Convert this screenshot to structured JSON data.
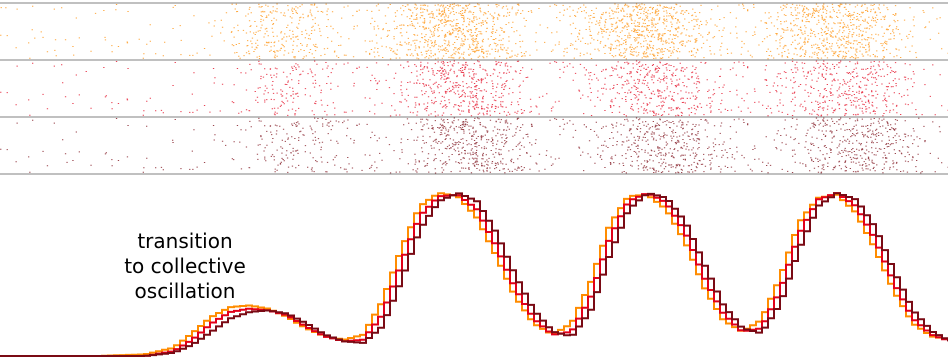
{
  "chart_data": {
    "type": "line",
    "title": "",
    "xlabel": "",
    "ylabel": "",
    "grid": false,
    "annotation": [
      "transition",
      "to collective",
      "oscillation"
    ],
    "series_colors": [
      "#ff8c00",
      "#e2001a",
      "#7a0a14"
    ],
    "raster_panels": [
      {
        "color": "#ff8c00",
        "density_peaks": [
          0.29,
          0.48,
          0.68,
          0.88
        ]
      },
      {
        "color": "#e2001a",
        "density_peaks": [
          0.3,
          0.49,
          0.69,
          0.89
        ]
      },
      {
        "color": "#7a0a14",
        "density_peaks": [
          0.31,
          0.5,
          0.7,
          0.9
        ]
      }
    ],
    "x": [
      0.0,
      0.05,
      0.1,
      0.15,
      0.18,
      0.2,
      0.22,
      0.24,
      0.26,
      0.28,
      0.3,
      0.32,
      0.34,
      0.36,
      0.38,
      0.4,
      0.42,
      0.44,
      0.46,
      0.48,
      0.5,
      0.52,
      0.54,
      0.56,
      0.58,
      0.6,
      0.62,
      0.64,
      0.66,
      0.68,
      0.7,
      0.72,
      0.74,
      0.76,
      0.78,
      0.8,
      0.82,
      0.84,
      0.86,
      0.88,
      0.9,
      0.92,
      0.94,
      0.96,
      0.98,
      1.0
    ],
    "series": [
      {
        "values": [
          0.0,
          0.0,
          0.0,
          0.01,
          0.05,
          0.14,
          0.24,
          0.3,
          0.31,
          0.29,
          0.24,
          0.17,
          0.12,
          0.1,
          0.13,
          0.33,
          0.65,
          0.92,
          1.0,
          0.98,
          0.85,
          0.62,
          0.37,
          0.2,
          0.13,
          0.2,
          0.45,
          0.8,
          0.98,
          0.99,
          0.9,
          0.7,
          0.42,
          0.22,
          0.15,
          0.22,
          0.48,
          0.82,
          0.97,
          0.99,
          0.88,
          0.66,
          0.4,
          0.2,
          0.12,
          0.1
        ]
      },
      {
        "values": [
          0.0,
          0.0,
          0.0,
          0.0,
          0.03,
          0.1,
          0.2,
          0.27,
          0.29,
          0.28,
          0.25,
          0.18,
          0.12,
          0.09,
          0.1,
          0.25,
          0.56,
          0.86,
          0.98,
          0.99,
          0.9,
          0.68,
          0.42,
          0.23,
          0.13,
          0.15,
          0.36,
          0.72,
          0.95,
          1.0,
          0.94,
          0.76,
          0.48,
          0.26,
          0.15,
          0.17,
          0.4,
          0.75,
          0.96,
          1.0,
          0.92,
          0.72,
          0.45,
          0.23,
          0.13,
          0.09
        ]
      },
      {
        "values": [
          0.0,
          0.0,
          0.0,
          0.0,
          0.02,
          0.07,
          0.15,
          0.23,
          0.27,
          0.28,
          0.26,
          0.2,
          0.13,
          0.09,
          0.08,
          0.18,
          0.46,
          0.78,
          0.95,
          1.0,
          0.95,
          0.76,
          0.5,
          0.28,
          0.15,
          0.12,
          0.28,
          0.62,
          0.9,
          1.0,
          0.97,
          0.82,
          0.56,
          0.31,
          0.17,
          0.14,
          0.32,
          0.66,
          0.92,
          1.0,
          0.96,
          0.79,
          0.52,
          0.28,
          0.15,
          0.09
        ]
      }
    ]
  }
}
